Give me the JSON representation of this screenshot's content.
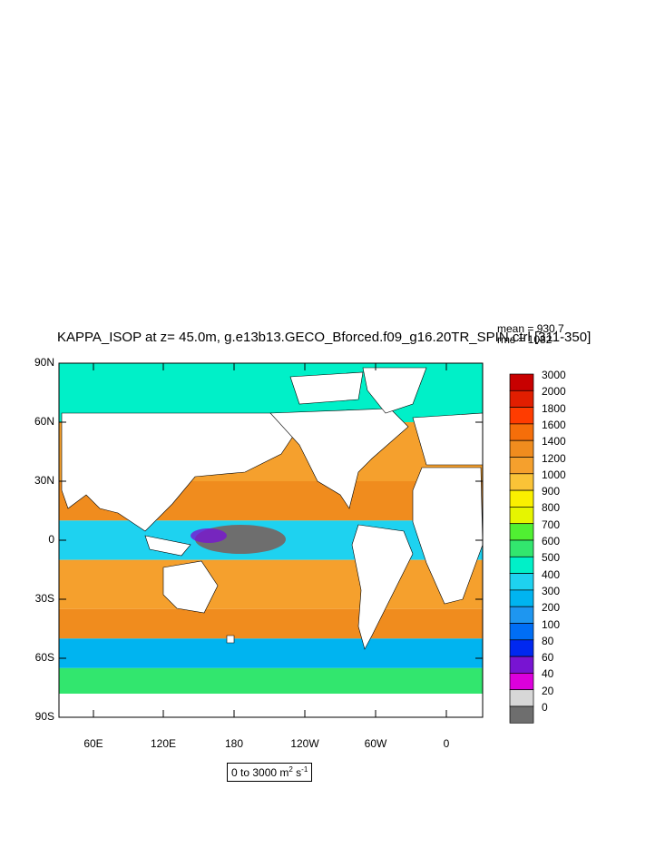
{
  "title": "KAPPA_ISOP at z=  45.0m, g.e13b13.GECO_Bforced.f09_g16.20TR_SPIN.ctrl [311-350]",
  "stats": {
    "mean": "mean = 930.7",
    "rms": "rms = 1082"
  },
  "units": {
    "range_text": "0 to 3000 m",
    "sup1": "2",
    "mid": " s",
    "sup2": "-1"
  },
  "lat_labels": [
    "90N",
    "60N",
    "30N",
    "0",
    "30S",
    "60S",
    "90S"
  ],
  "lon_labels": [
    "60E",
    "120E",
    "180",
    "120W",
    "60W",
    "0"
  ],
  "colorbar": {
    "labels": [
      "3000",
      "2000",
      "1800",
      "1600",
      "1400",
      "1200",
      "1000",
      "900",
      "800",
      "700",
      "600",
      "500",
      "400",
      "300",
      "200",
      "100",
      "80",
      "60",
      "40",
      "20",
      "0"
    ],
    "colors": [
      "#c80000",
      "#e11e00",
      "#ff3c00",
      "#f56e0a",
      "#f08c1e",
      "#f5a02d",
      "#fac337",
      "#faf000",
      "#e6f500",
      "#50f032",
      "#32e66e",
      "#00f0c8",
      "#1ed2f0",
      "#00b4f0",
      "#1e96f0",
      "#006ef5",
      "#0028f0",
      "#7814d2",
      "#dc00dc",
      "#d7d7d7",
      "#6e6e6e"
    ]
  },
  "map": {
    "land_color": "#ffffff",
    "ocean_bands": [
      {
        "lat_range": [
          60,
          90
        ],
        "color": "#00f0c8"
      },
      {
        "lat_range": [
          30,
          60
        ],
        "color": "#f5a02d"
      },
      {
        "lat_range": [
          10,
          30
        ],
        "color": "#f08c1e"
      },
      {
        "lat_range": [
          -10,
          10
        ],
        "color": "#1ed2f0"
      },
      {
        "lat_range": [
          -35,
          -10
        ],
        "color": "#f5a02d"
      },
      {
        "lat_range": [
          -50,
          -35
        ],
        "color": "#f08c1e"
      },
      {
        "lat_range": [
          -65,
          -50
        ],
        "color": "#00b4f0"
      },
      {
        "lat_range": [
          -78,
          -65
        ],
        "color": "#32e66e"
      }
    ]
  }
}
